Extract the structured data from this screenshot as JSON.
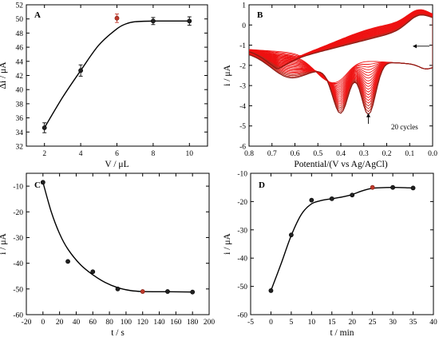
{
  "chart_data": [
    {
      "panel": "A",
      "type": "scatter",
      "xlabel": "V / μL",
      "ylabel": "Δi / μA",
      "xlim": [
        1,
        11
      ],
      "ylim": [
        32,
        52
      ],
      "xticks": [
        2,
        4,
        6,
        8,
        10
      ],
      "yticks": [
        32,
        34,
        36,
        38,
        40,
        42,
        44,
        46,
        48,
        50,
        52
      ],
      "x": [
        2,
        4,
        6,
        8,
        10
      ],
      "y": [
        34.6,
        42.7,
        50.1,
        49.7,
        49.7
      ],
      "errors": [
        0.7,
        0.8,
        0.6,
        0.5,
        0.6
      ],
      "highlight_index": 2,
      "fit_curve": [
        [
          2,
          34.6
        ],
        [
          3,
          38.9
        ],
        [
          4,
          42.7
        ],
        [
          5,
          46.3
        ],
        [
          6,
          48.6
        ],
        [
          6.5,
          49.3
        ],
        [
          7,
          49.6
        ],
        [
          8,
          49.7
        ],
        [
          9,
          49.7
        ],
        [
          10,
          49.7
        ]
      ]
    },
    {
      "panel": "B",
      "type": "line",
      "xlabel": "Potential/(V vs Ag/AgCl)",
      "ylabel": "i / μA",
      "xlim": [
        0.8,
        0.0
      ],
      "ylim": [
        -6,
        1
      ],
      "xticks": [
        0.8,
        0.7,
        0.6,
        0.5,
        0.4,
        0.3,
        0.2,
        0.1,
        0.0
      ],
      "yticks": [
        -6,
        -5,
        -4,
        -3,
        -2,
        -1,
        0,
        1
      ],
      "annotation": "20  cycles",
      "cycles": 20
    },
    {
      "panel": "C",
      "type": "scatter",
      "xlabel": "t / s",
      "ylabel": "i / μA",
      "xlim": [
        -20,
        200
      ],
      "ylim": [
        -60,
        -5
      ],
      "xticks": [
        -20,
        0,
        20,
        40,
        60,
        80,
        100,
        120,
        140,
        160,
        180,
        200
      ],
      "yticks": [
        -60,
        -50,
        -40,
        -30,
        -20,
        -10
      ],
      "x": [
        0,
        30,
        60,
        90,
        120,
        150,
        180
      ],
      "y": [
        -8.5,
        -39.3,
        -43.3,
        -50.0,
        -51.0,
        -51.0,
        -51.2
      ],
      "highlight_index": 4,
      "fit_curve": [
        [
          0,
          -8.5
        ],
        [
          10,
          -20
        ],
        [
          20,
          -28.5
        ],
        [
          30,
          -34.5
        ],
        [
          45,
          -40.5
        ],
        [
          60,
          -44.5
        ],
        [
          75,
          -47.5
        ],
        [
          90,
          -49.5
        ],
        [
          105,
          -50.6
        ],
        [
          120,
          -51.0
        ],
        [
          150,
          -51.1
        ],
        [
          180,
          -51.2
        ]
      ]
    },
    {
      "panel": "D",
      "type": "scatter",
      "xlabel": "t / min",
      "ylabel": "i / μA",
      "xlim": [
        -5,
        40
      ],
      "ylim": [
        -60,
        -10
      ],
      "xticks": [
        -5,
        0,
        5,
        10,
        15,
        20,
        25,
        30,
        35,
        40
      ],
      "yticks": [
        -60,
        -50,
        -40,
        -30,
        -20,
        -10
      ],
      "x": [
        0,
        5,
        10,
        15,
        20,
        25,
        30,
        35
      ],
      "y": [
        -51.5,
        -31.8,
        -19.5,
        -19.0,
        -17.7,
        -15.0,
        -15.0,
        -15.2
      ],
      "highlight_index": 5,
      "fit_curve": [
        [
          0,
          -51.5
        ],
        [
          2.5,
          -42
        ],
        [
          5,
          -32
        ],
        [
          7.5,
          -24.5
        ],
        [
          10,
          -20.8
        ],
        [
          12.5,
          -19.6
        ],
        [
          15,
          -19
        ],
        [
          17.5,
          -18.4
        ],
        [
          20,
          -17.5
        ],
        [
          22.5,
          -16.2
        ],
        [
          25,
          -15.3
        ],
        [
          30,
          -15.0
        ],
        [
          35,
          -15.2
        ]
      ]
    }
  ],
  "colors": {
    "marker": "#222222",
    "highlight": "#c0392b",
    "cv_red": "#ee1111",
    "cv_dark": "#8b1a14"
  }
}
